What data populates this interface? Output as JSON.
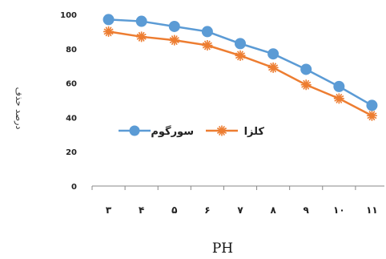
{
  "chart_data": {
    "type": "line",
    "title": "",
    "xlabel": "PH",
    "ylabel": "درصد حذف",
    "categories": [
      "۳",
      "۴",
      "۵",
      "۶",
      "۷",
      "۸",
      "۹",
      "۱۰",
      "۱۱"
    ],
    "ylim": [
      0,
      100
    ],
    "yticks": [
      "0",
      "20",
      "40",
      "60",
      "80",
      "100"
    ],
    "legend_position": "center-left",
    "grid": false,
    "series": [
      {
        "name": "سورگوم",
        "color": "#5b9bd5",
        "marker": "circle",
        "values": [
          97,
          96,
          93,
          90,
          83,
          77,
          68,
          58,
          47
        ]
      },
      {
        "name": "کلزا",
        "color": "#ed7d31",
        "marker": "star",
        "values": [
          90,
          87,
          85,
          82,
          76,
          69,
          59,
          51,
          41
        ]
      }
    ]
  }
}
